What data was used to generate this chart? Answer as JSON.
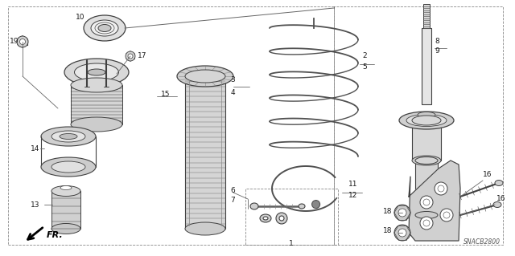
{
  "bg_color": "#f5f5f0",
  "lc": "#404040",
  "tc": "#1a1a1a",
  "diagram_code": "SNACB2800",
  "figsize": [
    6.4,
    3.19
  ],
  "dpi": 100
}
